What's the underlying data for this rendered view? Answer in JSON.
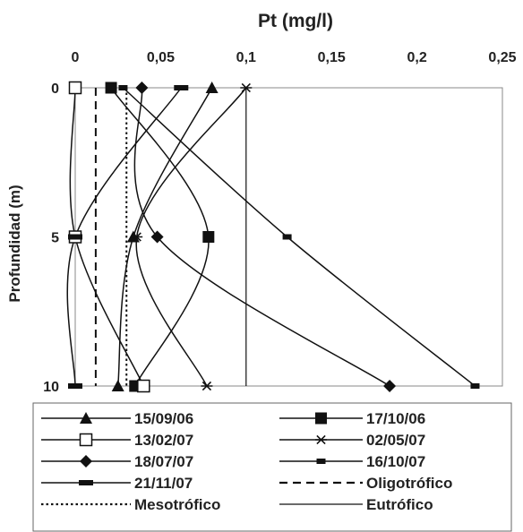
{
  "chart_data": {
    "type": "line",
    "title": "Pt (mg/l)",
    "xlabel": "Pt (mg/l)",
    "ylabel": "Profundidad (m)",
    "xlim": [
      0,
      0.25
    ],
    "ylim": [
      0,
      10
    ],
    "x_axis_position": "top",
    "y_axis_inverted": true,
    "x_ticks": [
      "0",
      "0,05",
      "0,1",
      "0,15",
      "0,2",
      "0,25"
    ],
    "y_ticks": [
      "0",
      "5",
      "10"
    ],
    "legend_position": "bottom",
    "grid": false,
    "series": [
      {
        "name": "15/09/06",
        "marker": "triangle",
        "points": [
          [
            0.08,
            0
          ],
          [
            0.034,
            5
          ],
          [
            0.025,
            10
          ]
        ]
      },
      {
        "name": "17/10/06",
        "marker": "square",
        "points": [
          [
            0.021,
            0
          ],
          [
            0.078,
            5
          ],
          [
            0.035,
            10
          ]
        ]
      },
      {
        "name": "13/02/07",
        "marker": "open-square",
        "points": [
          [
            0.0,
            0
          ],
          [
            0.0,
            5
          ],
          [
            0.04,
            10
          ]
        ]
      },
      {
        "name": "02/05/07",
        "marker": "star",
        "points": [
          [
            0.1,
            0
          ],
          [
            0.036,
            5
          ],
          [
            0.077,
            10
          ]
        ]
      },
      {
        "name": "18/07/07",
        "marker": "diamond",
        "points": [
          [
            0.039,
            0
          ],
          [
            0.048,
            5
          ],
          [
            0.184,
            10
          ]
        ]
      },
      {
        "name": "16/10/07",
        "marker": "dash",
        "points": [
          [
            0.028,
            0
          ],
          [
            0.124,
            5
          ],
          [
            0.234,
            10
          ]
        ]
      },
      {
        "name": "21/11/07",
        "marker": "thick-dash",
        "points": [
          [
            0.062,
            0
          ],
          [
            0.0,
            5
          ],
          [
            0.0,
            10
          ]
        ]
      }
    ],
    "reference_lines": [
      {
        "name": "Oligotrófico",
        "style": "dashed",
        "x": 0.012
      },
      {
        "name": "Mesotrófico",
        "style": "dotted",
        "x": 0.03
      },
      {
        "name": "Eutrófico",
        "style": "solid",
        "x": 0.1
      }
    ]
  }
}
